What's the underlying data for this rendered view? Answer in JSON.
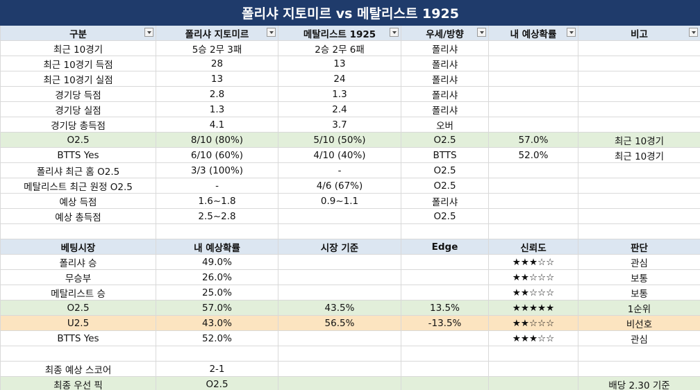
{
  "title": "폴리샤 지토미르 vs 메탈리스트 1925",
  "table1": {
    "columns": [
      "구분",
      "폴리샤 지토미르",
      "메탈리스트 1925",
      "우세/방향",
      "내 예상확률",
      "비고"
    ],
    "rows": [
      [
        "최근 10경기",
        "5승 2무 3패",
        "2승 2무 6패",
        "폴리샤",
        null,
        null
      ],
      [
        "최근 10경기 득점",
        "28",
        "13",
        "폴리샤",
        null,
        null
      ],
      [
        "최근 10경기 실점",
        "13",
        "24",
        "폴리샤",
        null,
        null
      ],
      [
        "경기당 득점",
        "2.8",
        "1.3",
        "폴리샤",
        null,
        null
      ],
      [
        "경기당 실점",
        "1.3",
        "2.4",
        "폴리샤",
        null,
        null
      ],
      [
        "경기당 총득점",
        "4.1",
        "3.7",
        "오버",
        null,
        null
      ],
      [
        "O2.5",
        "8/10 (80%)",
        "5/10 (50%)",
        "O2.5",
        "57.0%",
        "최근 10경기"
      ],
      [
        "BTTS Yes",
        "6/10 (60%)",
        "4/10 (40%)",
        "BTTS",
        "52.0%",
        "최근 10경기"
      ],
      [
        "폴리샤 최근 홈 O2.5",
        "3/3 (100%)",
        "-",
        "O2.5",
        null,
        null
      ],
      [
        "메탈리스트 최근 원정 O2.5",
        "-",
        "4/6 (67%)",
        "O2.5",
        null,
        null
      ],
      [
        "예상 득점",
        "1.6~1.8",
        "0.9~1.1",
        "폴리샤",
        null,
        null
      ],
      [
        "예상 총득점",
        "2.5~2.8",
        null,
        "O2.5",
        null,
        null
      ]
    ]
  },
  "table2": {
    "columns": [
      "베팅시장",
      "내 예상확률",
      "시장 기준",
      "Edge",
      "신뢰도",
      "판단"
    ],
    "rows": [
      [
        "폴리샤 승",
        "49.0%",
        null,
        null,
        "★★★☆☆",
        "관심"
      ],
      [
        "무승부",
        "26.0%",
        null,
        null,
        "★★☆☆☆",
        "보통"
      ],
      [
        "메탈리스트 승",
        "25.0%",
        null,
        null,
        "★★☆☆☆",
        "보통"
      ],
      [
        "O2.5",
        "57.0%",
        "43.5%",
        "13.5%",
        "★★★★★",
        "1순위"
      ],
      [
        "U2.5",
        "43.0%",
        "56.5%",
        "-13.5%",
        "★★☆☆☆",
        "비선호"
      ],
      [
        "BTTS Yes",
        "52.0%",
        null,
        null,
        "★★★☆☆",
        "관심"
      ],
      [
        null,
        null,
        null,
        null,
        null,
        null
      ],
      [
        "최종 예상 스코어",
        "2-1",
        null,
        null,
        null,
        null
      ],
      [
        "최종 우선 픽",
        "O2.5",
        null,
        null,
        null,
        "배당 2.30 기준"
      ]
    ]
  }
}
